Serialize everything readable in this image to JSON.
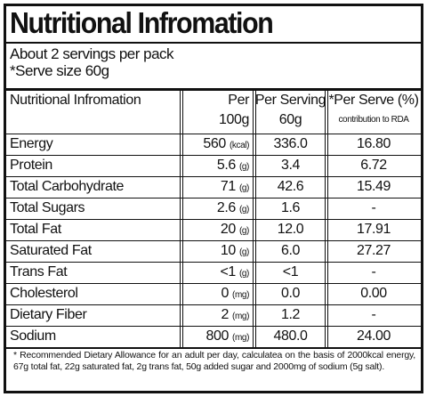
{
  "header": {
    "title": "Nutritional Infromation",
    "servings": "About 2 servings per pack",
    "serve_size": "*Serve size 60g"
  },
  "table": {
    "columns": {
      "name": "Nutritional Infromation",
      "per100_top": "Per",
      "per100_bottom": "100g",
      "serving_top": "Per Serving",
      "serving_bottom": "60g",
      "rda_top": "*Per Serve (%)",
      "rda_bottom": "contribution to RDA"
    },
    "rows": [
      {
        "name": "Energy",
        "per100": "560",
        "unit": "(kcal)",
        "serving": "336.0",
        "rda": "16.80"
      },
      {
        "name": "Protein",
        "per100": "5.6",
        "unit": "(g)",
        "serving": "3.4",
        "rda": "6.72"
      },
      {
        "name": "Total Carbohydrate",
        "per100": "71",
        "unit": "(g)",
        "serving": "42.6",
        "rda": "15.49"
      },
      {
        "name": "Total Sugars",
        "per100": "2.6",
        "unit": "(g)",
        "serving": "1.6",
        "rda": "-"
      },
      {
        "name": "Total Fat",
        "per100": "20",
        "unit": "(g)",
        "serving": "12.0",
        "rda": "17.91"
      },
      {
        "name": "Saturated Fat",
        "per100": "10",
        "unit": "(g)",
        "serving": "6.0",
        "rda": "27.27"
      },
      {
        "name": "Trans Fat",
        "per100": "<1",
        "unit": "(g)",
        "serving": "<1",
        "rda": "-"
      },
      {
        "name": "Cholesterol",
        "per100": "0",
        "unit": "(mg)",
        "serving": "0.0",
        "rda": "0.00"
      },
      {
        "name": "Dietary Fiber",
        "per100": "2",
        "unit": "(mg)",
        "serving": "1.2",
        "rda": "-"
      },
      {
        "name": "Sodium",
        "per100": "800",
        "unit": "(mg)",
        "serving": "480.0",
        "rda": "24.00"
      }
    ]
  },
  "footnote": "* Recommended Dietary Allowance for an adult per day, calculatea on the basis of 2000kcal energy, 67g total fat, 22g saturated fat, 2g trans fat, 50g added sugar and 2000mg of sodium (5g salt)."
}
